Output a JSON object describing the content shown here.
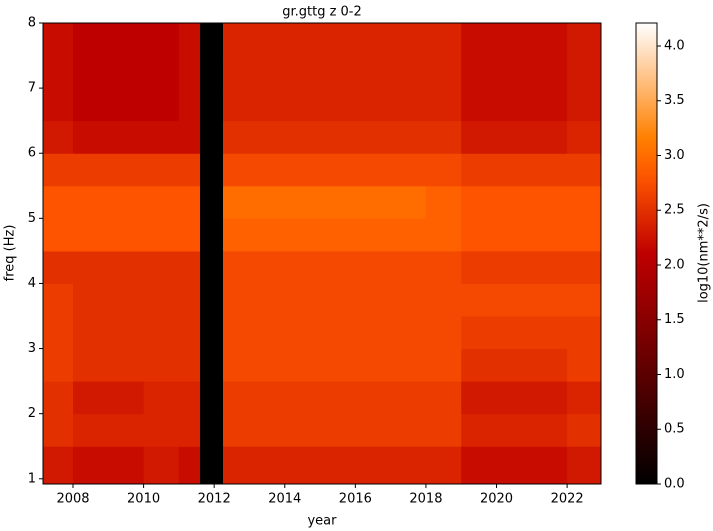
{
  "chart_data": {
    "type": "heatmap",
    "title": "gr.gttg z 0-2",
    "x_label": "year",
    "y_label": "freq (Hz)",
    "colorbar_label": "log10(nm**2/s)",
    "colormap": "gist_heat",
    "missing_color": "#000000",
    "x_edges": [
      2007.15,
      2008,
      2009,
      2010,
      2011,
      2011.6,
      2012.25,
      2013,
      2014,
      2015,
      2016,
      2017,
      2018,
      2019,
      2020,
      2021,
      2022,
      2022.96
    ],
    "y_edges": [
      0.92,
      1.5,
      2,
      2.5,
      3,
      3.5,
      4,
      4.5,
      5,
      5.5,
      6,
      6.5,
      7,
      7.5,
      8
    ],
    "values": [
      [
        2.3,
        2.2,
        2.2,
        2.3,
        2.2,
        null,
        2.4,
        2.4,
        2.4,
        2.4,
        2.4,
        2.4,
        2.4,
        2.2,
        2.2,
        2.2,
        2.3
      ],
      [
        2.5,
        2.4,
        2.4,
        2.4,
        2.4,
        null,
        2.6,
        2.6,
        2.6,
        2.6,
        2.6,
        2.6,
        2.6,
        2.4,
        2.4,
        2.4,
        2.5
      ],
      [
        2.5,
        2.3,
        2.3,
        2.4,
        2.4,
        null,
        2.6,
        2.6,
        2.6,
        2.6,
        2.6,
        2.6,
        2.6,
        2.3,
        2.3,
        2.3,
        2.4
      ],
      [
        2.6,
        2.5,
        2.5,
        2.5,
        2.5,
        null,
        2.7,
        2.7,
        2.7,
        2.7,
        2.7,
        2.7,
        2.7,
        2.5,
        2.5,
        2.5,
        2.6
      ],
      [
        2.6,
        2.5,
        2.5,
        2.5,
        2.5,
        null,
        2.7,
        2.7,
        2.7,
        2.7,
        2.7,
        2.7,
        2.7,
        2.6,
        2.6,
        2.6,
        2.6
      ],
      [
        2.6,
        2.5,
        2.5,
        2.5,
        2.5,
        null,
        2.7,
        2.7,
        2.7,
        2.7,
        2.7,
        2.7,
        2.7,
        2.7,
        2.7,
        2.7,
        2.7
      ],
      [
        2.5,
        2.5,
        2.5,
        2.5,
        2.5,
        null,
        2.7,
        2.7,
        2.7,
        2.7,
        2.7,
        2.7,
        2.7,
        2.6,
        2.6,
        2.6,
        2.6
      ],
      [
        2.8,
        2.8,
        2.8,
        2.8,
        2.8,
        null,
        2.9,
        2.9,
        2.9,
        2.9,
        2.9,
        2.9,
        2.9,
        2.8,
        2.8,
        2.8,
        2.8
      ],
      [
        2.8,
        2.8,
        2.8,
        2.8,
        2.8,
        null,
        3.0,
        3.0,
        3.0,
        3.0,
        3.0,
        3.0,
        2.9,
        2.8,
        2.8,
        2.8,
        2.8
      ],
      [
        2.6,
        2.6,
        2.6,
        2.6,
        2.6,
        null,
        2.7,
        2.7,
        2.7,
        2.7,
        2.7,
        2.7,
        2.7,
        2.6,
        2.6,
        2.6,
        2.6
      ],
      [
        2.3,
        2.2,
        2.2,
        2.2,
        2.2,
        null,
        2.5,
        2.5,
        2.5,
        2.5,
        2.5,
        2.5,
        2.5,
        2.3,
        2.3,
        2.3,
        2.4
      ],
      [
        2.2,
        2.1,
        2.1,
        2.1,
        2.2,
        null,
        2.4,
        2.4,
        2.4,
        2.4,
        2.4,
        2.4,
        2.4,
        2.2,
        2.2,
        2.2,
        2.3
      ],
      [
        2.2,
        2.1,
        2.1,
        2.1,
        2.2,
        null,
        2.4,
        2.4,
        2.4,
        2.4,
        2.4,
        2.4,
        2.4,
        2.2,
        2.2,
        2.2,
        2.3
      ],
      [
        2.2,
        2.1,
        2.1,
        2.1,
        2.2,
        null,
        2.4,
        2.4,
        2.4,
        2.4,
        2.4,
        2.4,
        2.4,
        2.2,
        2.2,
        2.2,
        2.3
      ]
    ],
    "xlim": [
      2007.15,
      2022.96
    ],
    "ylim": [
      0.92,
      8
    ],
    "xticks": [
      2008,
      2010,
      2012,
      2014,
      2016,
      2018,
      2020,
      2022
    ],
    "yticks": [
      1,
      2,
      3,
      4,
      5,
      6,
      7,
      8
    ],
    "clim": [
      0,
      4.21
    ],
    "cticks": [
      {
        "value": 0,
        "label": "0.0"
      },
      {
        "value": 0.5,
        "label": "0.5"
      },
      {
        "value": 1,
        "label": "1.0"
      },
      {
        "value": 1.5,
        "label": "1.5"
      },
      {
        "value": 2,
        "label": "2.0"
      },
      {
        "value": 2.5,
        "label": "2.5"
      },
      {
        "value": 3,
        "label": "3.0"
      },
      {
        "value": 3.5,
        "label": "3.5"
      },
      {
        "value": 4,
        "label": "4.0"
      }
    ]
  }
}
